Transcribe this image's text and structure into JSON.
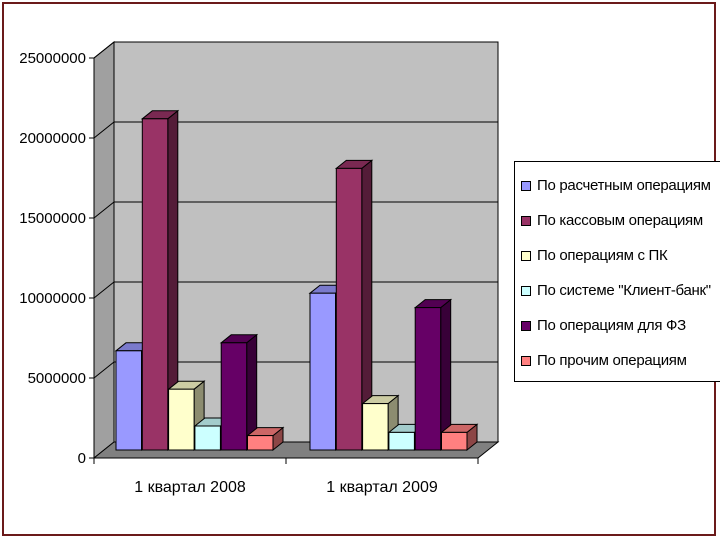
{
  "chart_data": {
    "type": "bar",
    "categories": [
      "1 квартал 2008",
      "1 квартал 2009"
    ],
    "series": [
      {
        "name": "По расчетным операциям",
        "color": "#9999ff",
        "values": [
          6200000,
          9800000
        ]
      },
      {
        "name": "По кассовым операциям",
        "color": "#993366",
        "values": [
          20700000,
          17600000
        ]
      },
      {
        "name": "По операциям с ПК",
        "color": "#ffffcc",
        "values": [
          3800000,
          2900000
        ]
      },
      {
        "name": "По системе \"Клиент-банк\"",
        "color": "#ccffff",
        "values": [
          1500000,
          1100000
        ]
      },
      {
        "name": "По операциям для ФЗ",
        "color": "#660066",
        "values": [
          6700000,
          8900000
        ]
      },
      {
        "name": "По прочим операциям",
        "color": "#ff8080",
        "values": [
          900000,
          1100000
        ]
      }
    ],
    "y_ticks": [
      "0",
      "5000000",
      "10000000",
      "15000000",
      "20000000",
      "25000000"
    ],
    "ylim": [
      0,
      25000000
    ],
    "grid": true,
    "legend_position": "right",
    "three_d": true,
    "wall_color": "#c0c0c0",
    "floor_color": "#808080"
  }
}
